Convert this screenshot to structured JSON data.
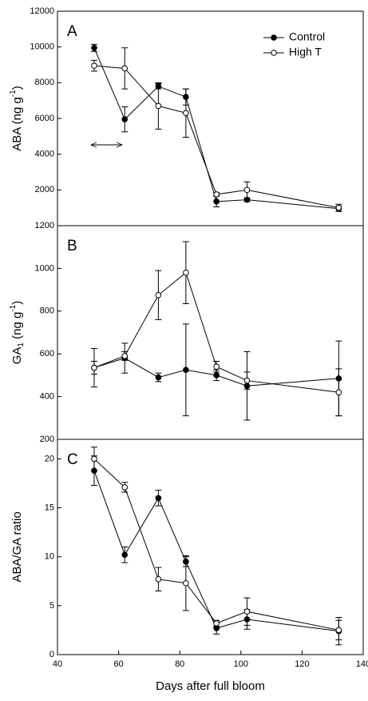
{
  "chart_data": [
    {
      "type": "line",
      "panel": "A",
      "ylabel": [
        "ABA (ng g",
        "-1",
        ")"
      ],
      "x": [
        52,
        62,
        73,
        82,
        92,
        102,
        132
      ],
      "xlim": [
        40,
        140
      ],
      "ylim": [
        0,
        12000
      ],
      "yticks": [
        2000,
        4000,
        6000,
        8000,
        10000,
        12000
      ],
      "legend": "upper right",
      "series": [
        {
          "name": "Control",
          "color": "#000000",
          "marker_fill": "#000000",
          "values": [
            9950,
            5950,
            7800,
            7200,
            1350,
            1450,
            950
          ],
          "errors": [
            200,
            700,
            150,
            450,
            300,
            100,
            150
          ]
        },
        {
          "name": "High T",
          "color": "#000000",
          "marker_fill": "#ffffff",
          "values": [
            8950,
            8800,
            6700,
            6300,
            1750,
            2000,
            1000
          ],
          "errors": [
            300,
            1150,
            1300,
            1350,
            100,
            450,
            200
          ]
        }
      ]
    },
    {
      "type": "line",
      "panel": "B",
      "ylabel": [
        "GA",
        "1",
        " (ng g",
        "-1",
        ")"
      ],
      "x": [
        52,
        62,
        73,
        82,
        92,
        102,
        132
      ],
      "xlim": [
        40,
        140
      ],
      "ylim": [
        200,
        1200
      ],
      "yticks": [
        200,
        400,
        600,
        800,
        1000,
        1200
      ],
      "series": [
        {
          "name": "Control",
          "color": "#000000",
          "marker_fill": "#000000",
          "values": [
            535,
            580,
            490,
            525,
            500,
            450,
            485
          ],
          "errors": [
            90,
            70,
            20,
            215,
            25,
            160,
            175
          ]
        },
        {
          "name": "High T",
          "color": "#000000",
          "marker_fill": "#ffffff",
          "values": [
            535,
            590,
            875,
            980,
            540,
            475,
            420
          ],
          "errors": [
            30,
            20,
            115,
            145,
            25,
            40,
            110
          ]
        }
      ]
    },
    {
      "type": "line",
      "panel": "C",
      "ylabel": [
        "ABA/GA ratio"
      ],
      "xlabel": "Days after full bloom",
      "x": [
        52,
        62,
        73,
        82,
        92,
        102,
        132
      ],
      "xlim": [
        40,
        140
      ],
      "xticks": [
        40,
        60,
        80,
        100,
        120,
        140
      ],
      "ylim": [
        0,
        22
      ],
      "yticks": [
        0,
        5,
        10,
        15,
        20
      ],
      "series": [
        {
          "name": "Control",
          "color": "#000000",
          "marker_fill": "#000000",
          "values": [
            18.8,
            10.2,
            16,
            9.5,
            2.7,
            3.6,
            2.4
          ],
          "errors": [
            1.5,
            0.8,
            0.8,
            0.5,
            0.6,
            1,
            1.4
          ]
        },
        {
          "name": "High T",
          "color": "#000000",
          "marker_fill": "#ffffff",
          "values": [
            20,
            17.1,
            7.7,
            7.3,
            3.2,
            4.4,
            2.5
          ],
          "errors": [
            1.2,
            0.5,
            1.2,
            2.8,
            0.3,
            1.4,
            1
          ]
        }
      ]
    }
  ]
}
